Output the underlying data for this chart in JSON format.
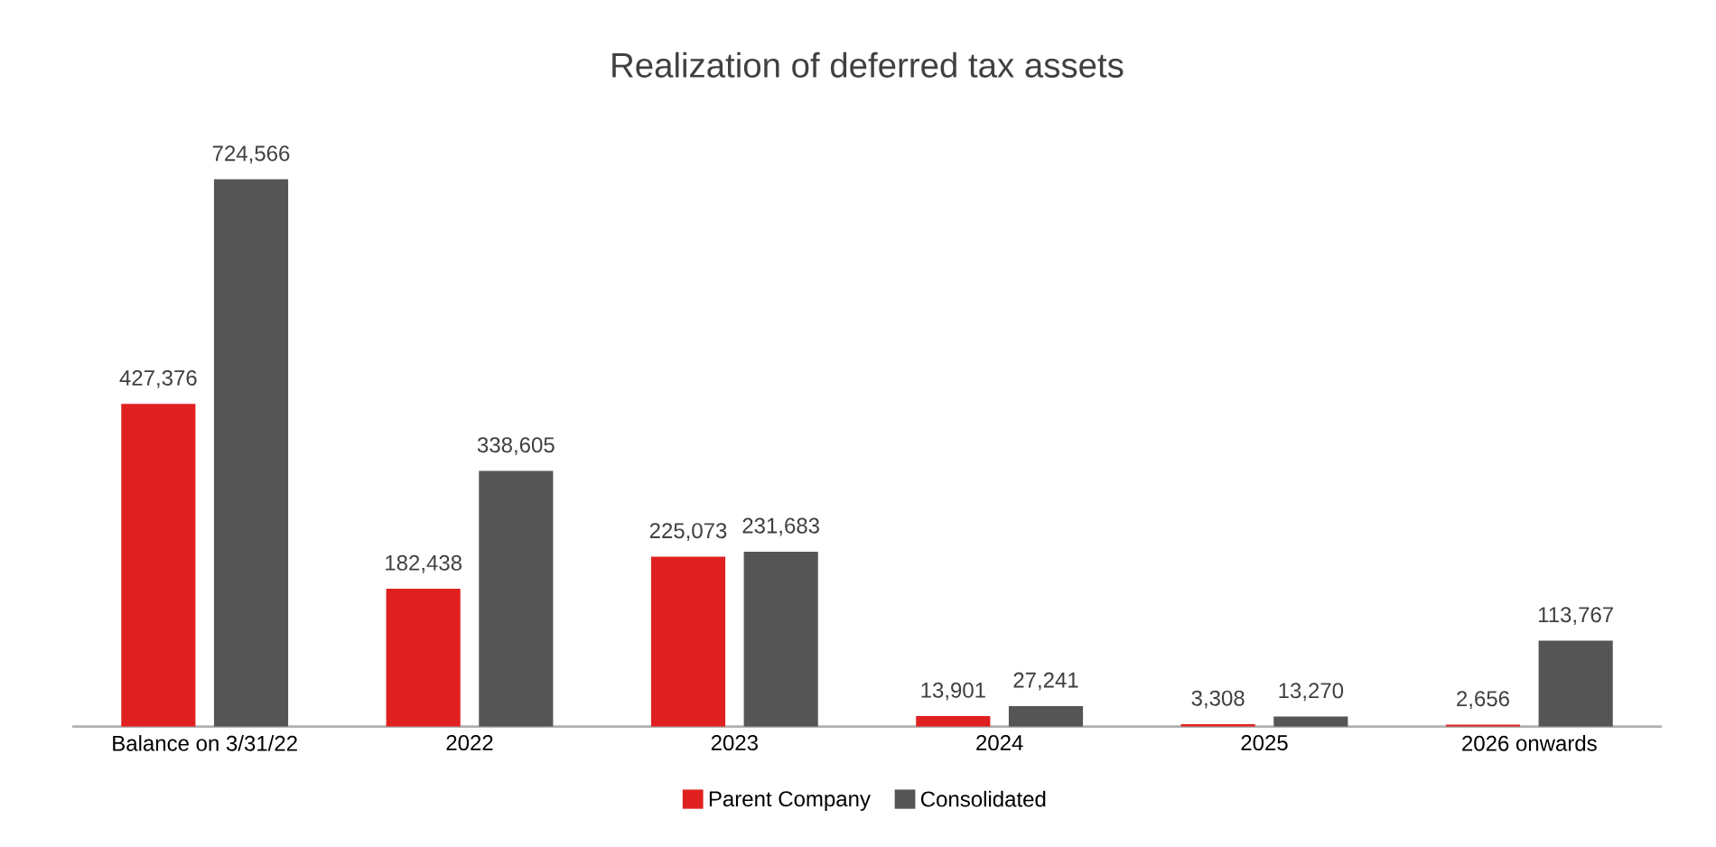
{
  "chart_data": {
    "type": "bar",
    "title": "Realization of deferred tax assets",
    "categories": [
      "Balance on 3/31/22",
      "2022",
      "2023",
      "2024",
      "2025",
      "2026 onwards"
    ],
    "series": [
      {
        "name": "Parent Company",
        "color": "#e02020",
        "values": [
          427376,
          182438,
          225073,
          13901,
          3308,
          2656
        ],
        "value_labels": [
          "427,376",
          "182,438",
          "225,073",
          "13,901",
          "3,308",
          "2,656"
        ]
      },
      {
        "name": "Consolidated",
        "color": "#555555",
        "values": [
          724566,
          338605,
          231683,
          27241,
          13270,
          113767
        ],
        "value_labels": [
          "724,566",
          "338,605",
          "231,683",
          "27,241",
          "13,270",
          "113,767"
        ]
      }
    ],
    "legend": "bottom"
  }
}
